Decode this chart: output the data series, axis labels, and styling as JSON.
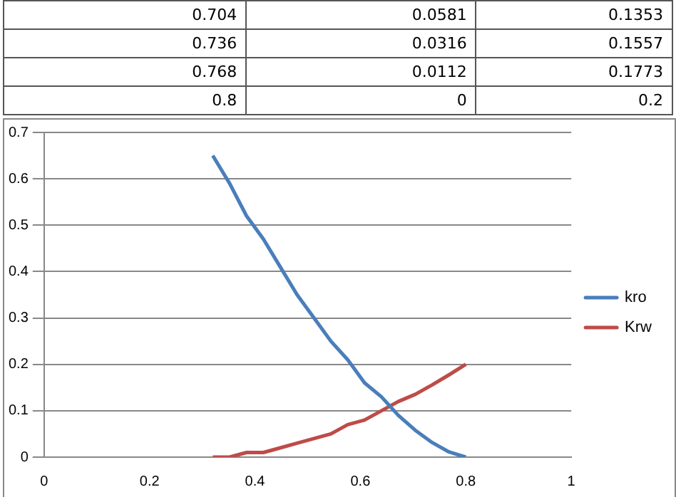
{
  "chart_data": {
    "type": "line",
    "x": [
      0.32,
      0.352,
      0.384,
      0.416,
      0.448,
      0.48,
      0.512,
      0.544,
      0.576,
      0.608,
      0.64,
      0.672,
      0.704,
      0.736,
      0.768,
      0.8
    ],
    "series": [
      {
        "name": "kro",
        "color": "#4a7ebb",
        "values": [
          0.65,
          0.59,
          0.52,
          0.47,
          0.41,
          0.35,
          0.3,
          0.25,
          0.21,
          0.16,
          0.13,
          0.09,
          0.0581,
          0.0316,
          0.0112,
          0
        ]
      },
      {
        "name": "Krw",
        "color": "#be4b48",
        "values": [
          0,
          0,
          0.01,
          0.01,
          0.02,
          0.03,
          0.04,
          0.05,
          0.07,
          0.08,
          0.1,
          0.12,
          0.1353,
          0.1557,
          0.1773,
          0.2
        ]
      }
    ],
    "annotations": [
      "0.704",
      "0.0581",
      "0.1353",
      "0.736",
      "0.0316",
      "0.1557",
      "0.768",
      "0.0112",
      "0.1773",
      "0.8",
      "0",
      "0.2"
    ],
    "xlim": [
      0,
      1
    ],
    "xticks": [
      0,
      0.2,
      0.4,
      0.6,
      0.8,
      1
    ],
    "ylim": [
      0,
      0.7
    ],
    "yticks": [
      0,
      0.1,
      0.2,
      0.3,
      0.4,
      0.5,
      0.6,
      0.7
    ],
    "grid": "y",
    "legend": "right",
    "marker": "none",
    "line_style": "solid"
  }
}
